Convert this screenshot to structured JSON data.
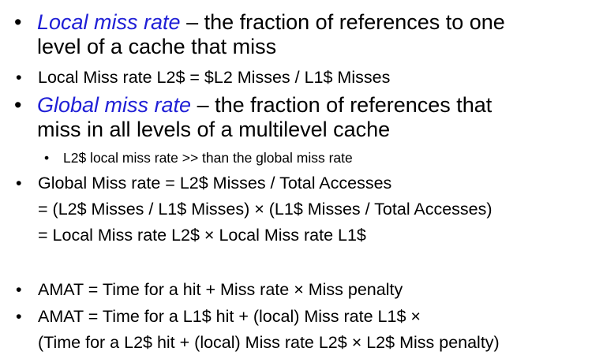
{
  "bullet_glyph": "•",
  "colors": {
    "term": "#1f1fd6",
    "text": "#000000",
    "background": "#ffffff"
  },
  "items": [
    {
      "term": "Local miss rate",
      "rest": " – the fraction of references to one",
      "line2": "level of a cache that miss"
    },
    {
      "text": "Local Miss rate L2$ = $L2 Misses / L1$ Misses"
    },
    {
      "term": "Global miss rate",
      "rest": " – the fraction of references that",
      "line2": "miss in all levels of a multilevel cache"
    },
    {
      "text": "L2$ local miss rate >> than the global miss rate"
    },
    {
      "line1": "Global Miss rate = L2$ Misses / Total Accesses",
      "line2": "= (L2$ Misses / L1$ Misses) × (L1$ Misses / Total Accesses)",
      "line3": "= Local Miss rate L2$ × Local Miss rate L1$"
    },
    {
      "text": "AMAT =  Time for a hit  +  Miss rate × Miss penalty"
    },
    {
      "line1": "AMAT =  Time for a L1$ hit  + (local) Miss rate L1$ ×",
      "line2": "(Time for a L2$ hit + (local) Miss rate L2$ × L2$ Miss penalty)"
    }
  ]
}
